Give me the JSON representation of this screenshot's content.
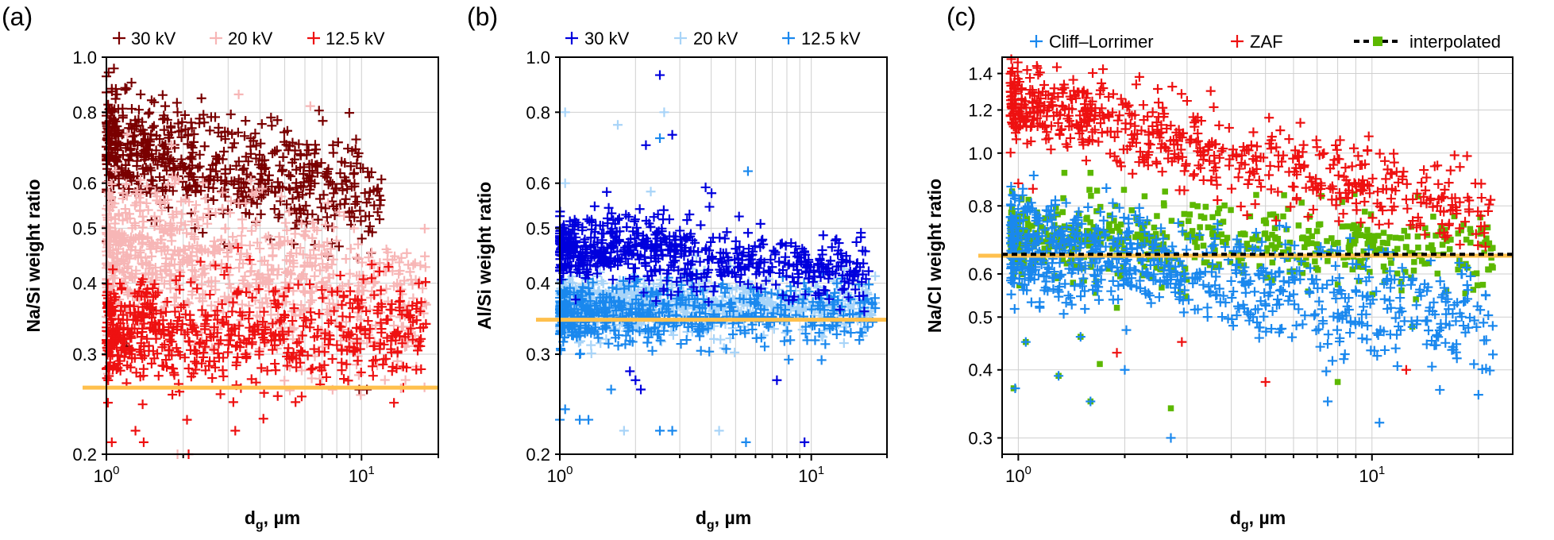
{
  "chart_data": [
    {
      "panel": "(a)",
      "type": "scatter",
      "xlabel_main": "d",
      "xlabel_sub": "g",
      "xlabel_rest": ", µm",
      "ylabel": "Na/Si weight ratio",
      "x_scale": "log",
      "y_scale": "log",
      "xlim": [
        1,
        20
      ],
      "ylim": [
        0.2,
        1.0
      ],
      "y_ticks": [
        {
          "v": 0.2,
          "label": "0.2"
        },
        {
          "v": 0.3,
          "label": "0.3"
        },
        {
          "v": 0.4,
          "label": "0.4"
        },
        {
          "v": 0.5,
          "label": "0.5"
        },
        {
          "v": 0.6,
          "label": "0.6"
        },
        {
          "v": 0.8,
          "label": "0.8"
        },
        {
          "v": 1.0,
          "label": "1.0"
        }
      ],
      "x_ticks": [
        {
          "v": 1,
          "base": "10",
          "exp": "0"
        },
        {
          "v": 10,
          "base": "10",
          "exp": "1"
        }
      ],
      "reference_line": {
        "y": 0.262,
        "color": "#ffc04d"
      },
      "legend": [
        {
          "label": "30 kV",
          "color": "#7a0000"
        },
        {
          "label": "20 kV",
          "color": "#f7b6b6"
        },
        {
          "label": "12.5 kV",
          "color": "#ee1111"
        }
      ],
      "series": [
        {
          "name": "30 kV",
          "color": "#7a0000",
          "marker": "plus",
          "n": 650,
          "x_range": [
            1,
            12
          ],
          "y_at_x1": 0.69,
          "y_slope": -0.075,
          "spread": 0.085,
          "outliers": [
            [
              1.02,
              0.94
            ],
            [
              1.05,
              0.88
            ],
            [
              1.2,
              0.88
            ],
            [
              1.1,
              0.86
            ],
            [
              1.7,
              0.82
            ],
            [
              1.9,
              0.8
            ],
            [
              10.5,
              0.26
            ],
            [
              9.8,
              0.26
            ],
            [
              1.2,
              0.31
            ],
            [
              1.5,
              0.36
            ]
          ]
        },
        {
          "name": "20 kV",
          "color": "#f7b6b6",
          "marker": "plus",
          "n": 850,
          "x_range": [
            1,
            18
          ],
          "y_at_x1": 0.46,
          "y_slope": -0.085,
          "spread": 0.12,
          "outliers": [
            [
              3.3,
              0.86
            ],
            [
              6.3,
              0.82
            ],
            [
              1.8,
              0.7
            ],
            [
              1.9,
              0.2
            ],
            [
              15,
              0.31
            ],
            [
              13,
              0.35
            ]
          ]
        },
        {
          "name": "12.5 kV",
          "color": "#ee1111",
          "marker": "plus",
          "n": 650,
          "x_range": [
            1,
            18
          ],
          "y_at_x1": 0.325,
          "y_slope": -0.005,
          "spread": 0.09,
          "outliers": [
            [
              1.05,
              0.21
            ],
            [
              1.4,
              0.21
            ],
            [
              1.3,
              0.22
            ],
            [
              2.1,
              0.2
            ],
            [
              3.2,
              0.22
            ],
            [
              17,
              0.31
            ]
          ]
        }
      ]
    },
    {
      "panel": "(b)",
      "type": "scatter",
      "xlabel_main": "d",
      "xlabel_sub": "g",
      "xlabel_rest": ", µm",
      "ylabel": "Al/Si weight ratio",
      "x_scale": "log",
      "y_scale": "log",
      "xlim": [
        1,
        20
      ],
      "ylim": [
        0.2,
        1.0
      ],
      "y_ticks": [
        {
          "v": 0.2,
          "label": "0.2"
        },
        {
          "v": 0.3,
          "label": "0.3"
        },
        {
          "v": 0.4,
          "label": "0.4"
        },
        {
          "v": 0.5,
          "label": "0.5"
        },
        {
          "v": 0.6,
          "label": "0.6"
        },
        {
          "v": 0.8,
          "label": "0.8"
        },
        {
          "v": 1.0,
          "label": "1.0"
        }
      ],
      "x_ticks": [
        {
          "v": 1,
          "base": "10",
          "exp": "0"
        },
        {
          "v": 10,
          "base": "10",
          "exp": "1"
        }
      ],
      "reference_line": {
        "y": 0.345,
        "color": "#ffc04d"
      },
      "legend": [
        {
          "label": "30 kV",
          "color": "#0000dd"
        },
        {
          "label": "20 kV",
          "color": "#a8d4f8"
        },
        {
          "label": "12.5 kV",
          "color": "#1a88ee"
        }
      ],
      "series": [
        {
          "name": "20 kV",
          "color": "#a8d4f8",
          "marker": "plus",
          "n": 750,
          "x_range": [
            1,
            18
          ],
          "y_at_x1": 0.365,
          "y_slope": 0.0,
          "spread": 0.045,
          "outliers": [
            [
              1.05,
              0.8
            ],
            [
              1.05,
              0.6
            ],
            [
              2.6,
              0.8
            ],
            [
              1.7,
              0.76
            ],
            [
              2.3,
              0.58
            ],
            [
              4.3,
              0.22
            ],
            [
              1.8,
              0.22
            ]
          ]
        },
        {
          "name": "12.5 kV",
          "color": "#1a88ee",
          "marker": "plus",
          "n": 550,
          "x_range": [
            1,
            18
          ],
          "y_at_x1": 0.352,
          "y_slope": 0.005,
          "spread": 0.05,
          "outliers": [
            [
              1.0,
              0.23
            ],
            [
              1.05,
              0.24
            ],
            [
              1.2,
              0.23
            ],
            [
              1.3,
              0.23
            ],
            [
              1.6,
              0.26
            ],
            [
              2.5,
              0.22
            ],
            [
              2.8,
              0.22
            ],
            [
              5.5,
              0.21
            ],
            [
              5.6,
              0.63
            ],
            [
              2.5,
              0.72
            ],
            [
              1.2,
              0.3
            ]
          ]
        },
        {
          "name": "30 kV",
          "color": "#0000dd",
          "marker": "plus",
          "n": 650,
          "x_range": [
            1,
            17
          ],
          "y_at_x1": 0.468,
          "y_slope": -0.04,
          "spread": 0.055,
          "outliers": [
            [
              2.5,
              0.93
            ],
            [
              2.8,
              0.73
            ],
            [
              2.2,
              0.7
            ],
            [
              3.8,
              0.59
            ],
            [
              1.9,
              0.28
            ],
            [
              2.0,
              0.27
            ],
            [
              2.1,
              0.26
            ],
            [
              7.3,
              0.27
            ],
            [
              9.4,
              0.21
            ]
          ]
        }
      ]
    },
    {
      "panel": "(c)",
      "type": "scatter",
      "xlabel_main": "d",
      "xlabel_sub": "g",
      "xlabel_rest": ", µm",
      "ylabel": "Na/Cl weight ratio",
      "x_scale": "log",
      "y_scale": "log",
      "xlim": [
        0.9,
        25
      ],
      "ylim": [
        0.28,
        1.5
      ],
      "y_ticks": [
        {
          "v": 0.3,
          "label": "0.3"
        },
        {
          "v": 0.4,
          "label": "0.4"
        },
        {
          "v": 0.5,
          "label": "0.5"
        },
        {
          "v": 0.6,
          "label": "0.6"
        },
        {
          "v": 0.8,
          "label": "0.8"
        },
        {
          "v": 1.0,
          "label": "1.0"
        },
        {
          "v": 1.2,
          "label": "1.2"
        },
        {
          "v": 1.4,
          "label": "1.4"
        }
      ],
      "x_ticks": [
        {
          "v": 1,
          "base": "10",
          "exp": "0"
        },
        {
          "v": 10,
          "base": "10",
          "exp": "1"
        }
      ],
      "reference_line": {
        "y": 0.648,
        "color": "#ffc04d"
      },
      "dashed_line": {
        "y": 0.652,
        "color": "#000000"
      },
      "legend": [
        {
          "label": "Cliff–Lorrimer",
          "color": "#1a88ee",
          "marker": "plus"
        },
        {
          "label": "ZAF",
          "color": "#ee1111",
          "marker": "plus"
        },
        {
          "label": "interpolated",
          "color": "#5cb800",
          "marker": "square"
        }
      ],
      "series": [
        {
          "name": "interpolated",
          "color": "#5cb800",
          "marker": "square",
          "n": 600,
          "x_range": [
            0.95,
            22
          ],
          "y_at_x1": 0.7,
          "y_slope": -0.02,
          "spread": 0.065,
          "outliers": [
            [
              1.35,
              0.92
            ],
            [
              1.6,
              0.92
            ],
            [
              2.6,
              0.85
            ],
            [
              1.7,
              0.41
            ],
            [
              1.6,
              0.35
            ],
            [
              2.7,
              0.34
            ],
            [
              1.9,
              0.52
            ],
            [
              1.05,
              0.45
            ],
            [
              0.97,
              0.37
            ],
            [
              1.3,
              0.39
            ],
            [
              1.5,
              0.46
            ],
            [
              8,
              0.38
            ],
            [
              13,
              0.48
            ]
          ]
        },
        {
          "name": "Cliff–Lorrimer",
          "color": "#1a88ee",
          "marker": "plus",
          "n": 850,
          "x_range": [
            0.95,
            22
          ],
          "y_at_x1": 0.68,
          "y_slope": -0.11,
          "spread": 0.085,
          "outliers": [
            [
              0.98,
              0.37
            ],
            [
              1.05,
              0.45
            ],
            [
              1.3,
              0.39
            ],
            [
              1.5,
              0.46
            ],
            [
              1.6,
              0.35
            ],
            [
              2.7,
              0.3
            ],
            [
              7.5,
              0.35
            ],
            [
              10.5,
              0.32
            ],
            [
              20,
              0.36
            ],
            [
              1.15,
              0.52
            ],
            [
              2.0,
              0.4
            ]
          ]
        },
        {
          "name": "ZAF",
          "color": "#ee1111",
          "marker": "plus",
          "n": 650,
          "x_range": [
            0.95,
            22
          ],
          "y_at_x1": 1.25,
          "y_slope": -0.16,
          "spread": 0.07,
          "outliers": [
            [
              1.0,
              0.88
            ],
            [
              1.1,
              0.86
            ],
            [
              2.9,
              0.45
            ],
            [
              5,
              0.38
            ],
            [
              1.9,
              0.43
            ],
            [
              2.2,
              1.38
            ],
            [
              3.5,
              1.3
            ],
            [
              12.5,
              0.4
            ]
          ]
        }
      ]
    }
  ]
}
